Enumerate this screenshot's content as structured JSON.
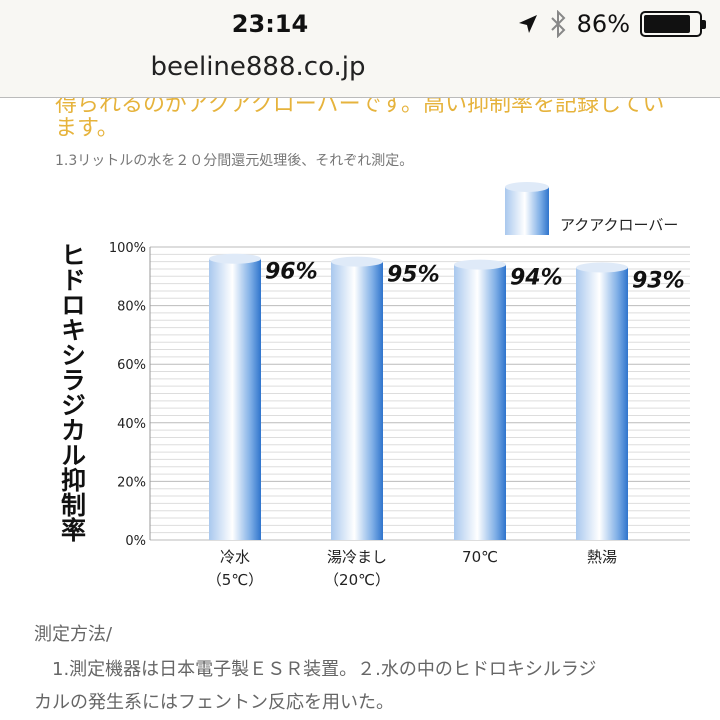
{
  "status_bar": {
    "time": "23:14",
    "battery": "86%",
    "battery_level": 0.86,
    "icons": [
      "location-arrow-icon",
      "bluetooth-icon",
      "battery-icon"
    ]
  },
  "browser": {
    "url": "beeline888.co.jp"
  },
  "content": {
    "cut_text": "得られるのがアクアクローバーです。高い抑制率を記録してい",
    "orange_text": "ます。",
    "note": "1.3リットルの水を２０分間還元処理後、それぞれ測定。",
    "method_title": "測定方法/",
    "method_line1": "　1.測定機器は日本電子製ＥＳＲ装置。２.水の中のヒドロキシルラジ",
    "method_line2": "カルの発生系にはフェントン反応を用いた。",
    "orange_color": "#e6b33c"
  },
  "chart_data": {
    "type": "bar",
    "ylabel": "ヒドロキシラジカル抑制率",
    "ylim": [
      0,
      100
    ],
    "yticks": [
      "0%",
      "20%",
      "40%",
      "60%",
      "80%",
      "100%"
    ],
    "categories": [
      [
        "冷水",
        "（5℃）"
      ],
      [
        "湯冷まし",
        "（20℃）"
      ],
      [
        "70℃",
        ""
      ],
      [
        "熱湯",
        ""
      ]
    ],
    "series": [
      {
        "name": "アクアクローバー",
        "values": [
          96,
          95,
          94,
          93
        ]
      }
    ],
    "data_labels": [
      "96%",
      "95%",
      "94%",
      "93%"
    ],
    "grid": true,
    "legend": "top-right",
    "bar_color": "#3a7fd0"
  }
}
